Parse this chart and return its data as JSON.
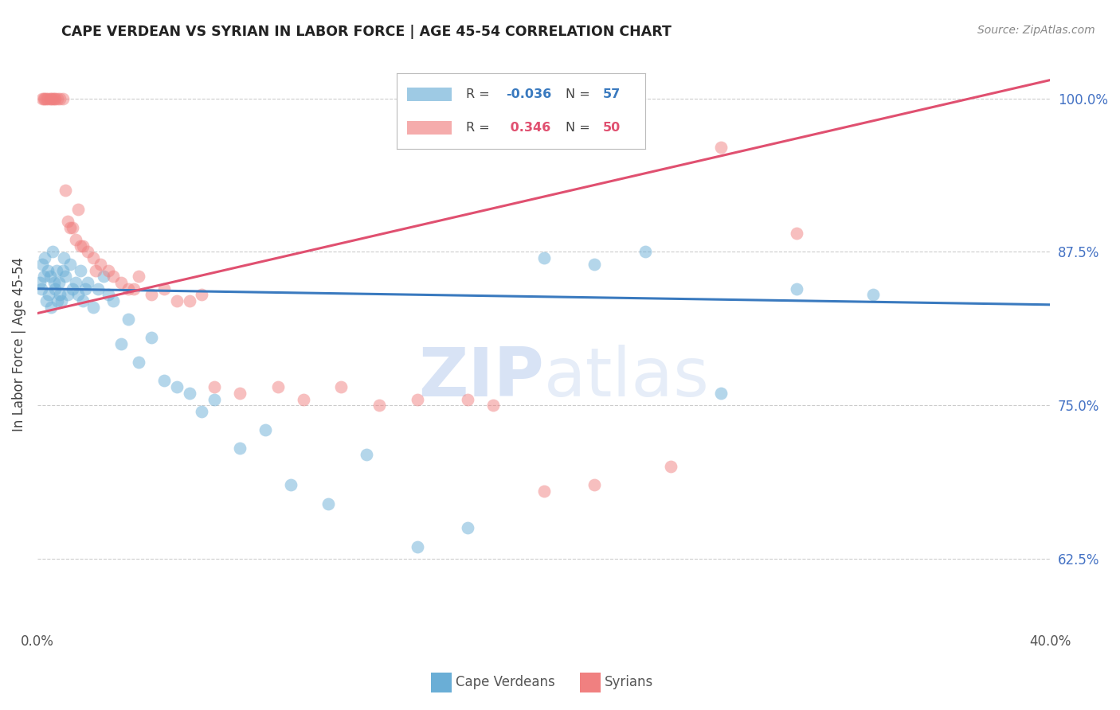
{
  "title": "CAPE VERDEAN VS SYRIAN IN LABOR FORCE | AGE 45-54 CORRELATION CHART",
  "source": "Source: ZipAtlas.com",
  "ylabel": "In Labor Force | Age 45-54",
  "xlim": [
    0.0,
    40.0
  ],
  "ylim": [
    57.0,
    103.0
  ],
  "yticks": [
    62.5,
    75.0,
    87.5,
    100.0
  ],
  "ytick_labels": [
    "62.5%",
    "75.0%",
    "87.5%",
    "100.0%"
  ],
  "blue_color": "#6aaed6",
  "pink_color": "#f08080",
  "blue_line_color": "#3a7abf",
  "pink_line_color": "#e05070",
  "R_cv": -0.036,
  "N_cv": 57,
  "R_sy": 0.346,
  "N_sy": 50,
  "cv_x": [
    0.1,
    0.15,
    0.2,
    0.25,
    0.3,
    0.35,
    0.4,
    0.45,
    0.5,
    0.55,
    0.6,
    0.65,
    0.7,
    0.75,
    0.8,
    0.85,
    0.9,
    0.95,
    1.0,
    1.05,
    1.1,
    1.2,
    1.3,
    1.4,
    1.5,
    1.6,
    1.7,
    1.8,
    1.9,
    2.0,
    2.2,
    2.4,
    2.6,
    2.8,
    3.0,
    3.3,
    3.6,
    4.0,
    4.5,
    5.0,
    5.5,
    6.0,
    6.5,
    7.0,
    8.0,
    9.0,
    10.0,
    11.5,
    13.0,
    15.0,
    17.0,
    20.0,
    22.0,
    24.0,
    27.0,
    30.0,
    33.0
  ],
  "cv_y": [
    85.0,
    84.5,
    86.5,
    85.5,
    87.0,
    83.5,
    86.0,
    84.0,
    85.5,
    83.0,
    87.5,
    85.0,
    84.5,
    86.0,
    83.5,
    85.0,
    84.0,
    83.5,
    86.0,
    87.0,
    85.5,
    84.0,
    86.5,
    84.5,
    85.0,
    84.0,
    86.0,
    83.5,
    84.5,
    85.0,
    83.0,
    84.5,
    85.5,
    84.0,
    83.5,
    80.0,
    82.0,
    78.5,
    80.5,
    77.0,
    76.5,
    76.0,
    74.5,
    75.5,
    71.5,
    73.0,
    68.5,
    67.0,
    71.0,
    63.5,
    65.0,
    87.0,
    86.5,
    87.5,
    76.0,
    84.5,
    84.0
  ],
  "sy_x": [
    0.2,
    0.3,
    0.4,
    0.5,
    0.6,
    0.7,
    0.8,
    0.9,
    1.0,
    1.1,
    1.2,
    1.4,
    1.5,
    1.6,
    1.8,
    2.0,
    2.2,
    2.5,
    2.8,
    3.0,
    3.3,
    3.6,
    4.0,
    4.5,
    5.0,
    5.5,
    6.5,
    7.0,
    8.0,
    9.5,
    10.5,
    12.0,
    13.5,
    15.0,
    17.0,
    18.0,
    20.0,
    22.0,
    25.0,
    27.0,
    0.25,
    0.35,
    0.55,
    0.65,
    1.3,
    1.7,
    2.3,
    3.8,
    6.0,
    30.0
  ],
  "sy_y": [
    100.0,
    100.0,
    100.0,
    100.0,
    100.0,
    100.0,
    100.0,
    100.0,
    100.0,
    92.5,
    90.0,
    89.5,
    88.5,
    91.0,
    88.0,
    87.5,
    87.0,
    86.5,
    86.0,
    85.5,
    85.0,
    84.5,
    85.5,
    84.0,
    84.5,
    83.5,
    84.0,
    76.5,
    76.0,
    76.5,
    75.5,
    76.5,
    75.0,
    75.5,
    75.5,
    75.0,
    68.0,
    68.5,
    70.0,
    96.0,
    100.0,
    100.0,
    100.0,
    100.0,
    89.5,
    88.0,
    86.0,
    84.5,
    83.5,
    89.0
  ],
  "watermark_zip": "ZIP",
  "watermark_atlas": "atlas",
  "background_color": "#ffffff",
  "grid_color": "#cccccc",
  "legend_R_label_color": "#555555",
  "legend_N_label_color": "#555555",
  "bottom_legend_color": "#555555"
}
